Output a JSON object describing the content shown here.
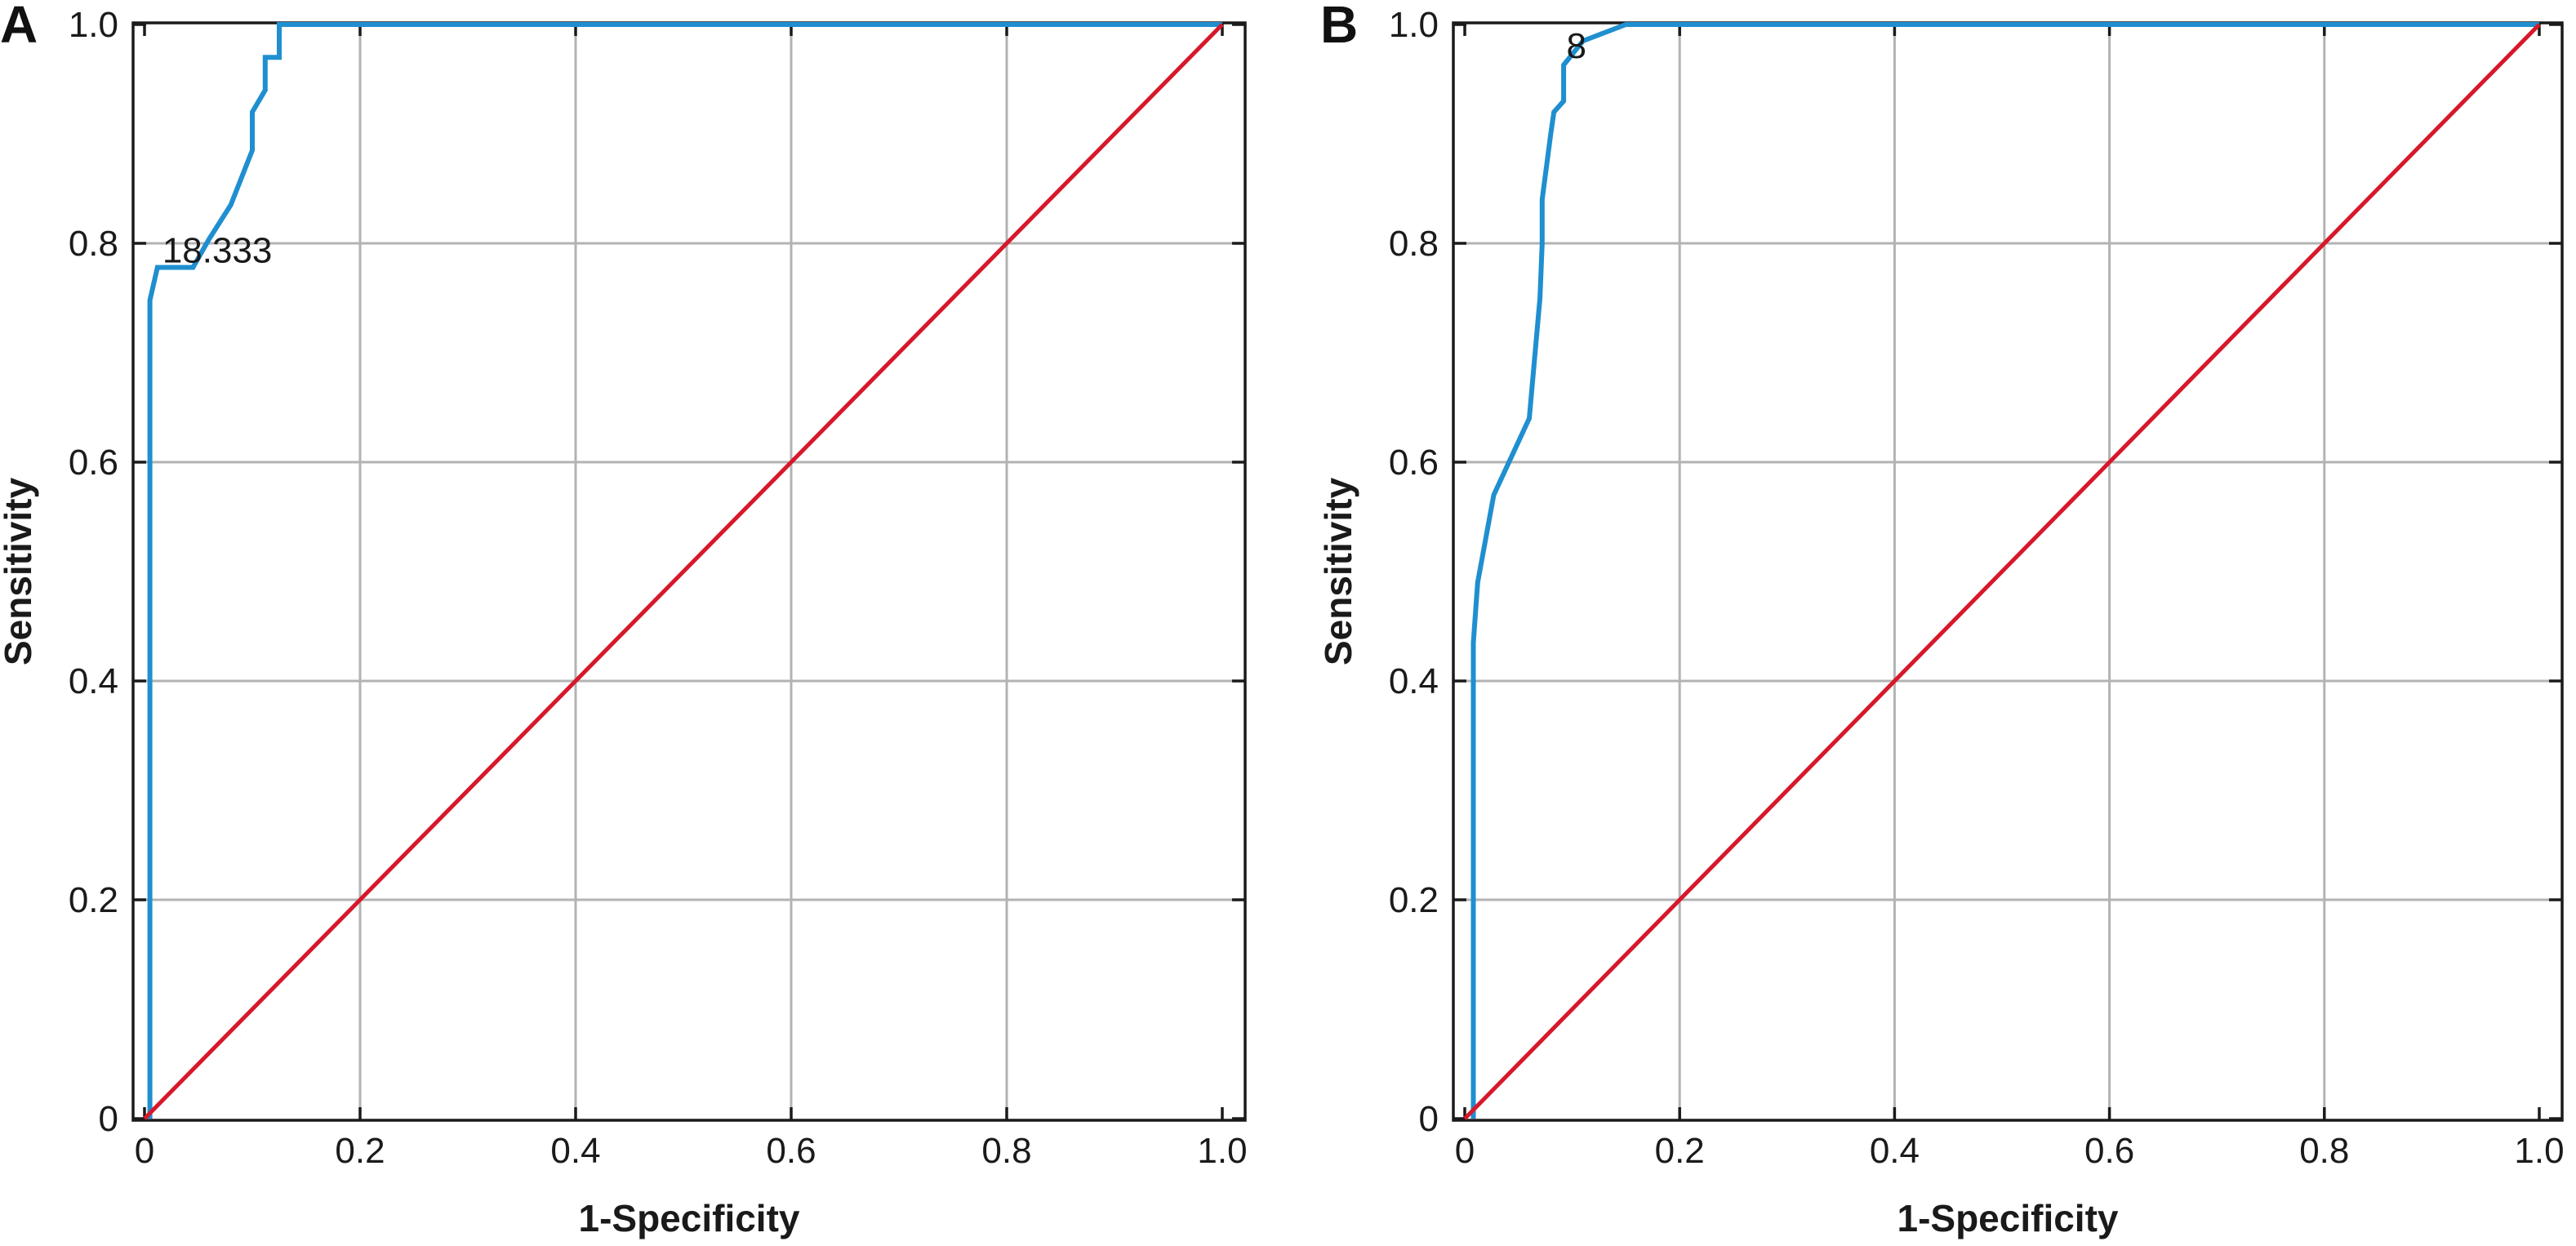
{
  "colors": {
    "roc": "#1f8fd0",
    "reference": "#d7182a",
    "grid": "#b3b3b3",
    "frame": "#1a1a1a"
  },
  "chart_data": [
    {
      "type": "line",
      "panel_label": "A",
      "xlabel": "1-Specificity",
      "ylabel": "Sensitivity",
      "xlim": [
        0,
        1.0
      ],
      "ylim": [
        0,
        1.0
      ],
      "x_ticks": [
        "0",
        "0.2",
        "0.4",
        "0.6",
        "0.8",
        "1.0"
      ],
      "y_ticks": [
        "0",
        "0.2",
        "0.4",
        "0.6",
        "0.8",
        "1.0"
      ],
      "grid": true,
      "annotation": {
        "text": "18.333",
        "x": 0.012,
        "y": 0.778
      },
      "series": [
        {
          "color": "#1f8fd0",
          "x": [
            0.005,
            0.005,
            0.012,
            0.045,
            0.06,
            0.08,
            0.1,
            0.1,
            0.112,
            0.112,
            0.125,
            0.125,
            1.0
          ],
          "y": [
            0,
            0.748,
            0.778,
            0.778,
            0.804,
            0.835,
            0.885,
            0.92,
            0.94,
            0.97,
            0.97,
            1.0,
            1.0
          ]
        },
        {
          "color": "#d7182a",
          "x": [
            0,
            1.0
          ],
          "y": [
            0,
            1.0
          ]
        }
      ]
    },
    {
      "type": "line",
      "panel_label": "B",
      "xlabel": "1-Specificity",
      "ylabel": "Sensitivity",
      "xlim": [
        0,
        1.0
      ],
      "ylim": [
        0,
        1.0
      ],
      "x_ticks": [
        "0",
        "0.2",
        "0.4",
        "0.6",
        "0.8",
        "1.0"
      ],
      "y_ticks": [
        "0",
        "0.2",
        "0.4",
        "0.6",
        "0.8",
        "1.0"
      ],
      "grid": true,
      "annotation": {
        "text": "8",
        "x": 0.09,
        "y": 0.965
      },
      "series": [
        {
          "color": "#1f8fd0",
          "x": [
            0.008,
            0.008,
            0.012,
            0.027,
            0.06,
            0.07,
            0.072,
            0.072,
            0.08,
            0.083,
            0.083,
            0.092,
            0.092,
            0.11,
            0.15,
            1.0
          ],
          "y": [
            0,
            0.435,
            0.49,
            0.57,
            0.64,
            0.75,
            0.8,
            0.84,
            0.9,
            0.92,
            0.92,
            0.93,
            0.963,
            0.985,
            1.0,
            1.0
          ]
        },
        {
          "color": "#d7182a",
          "x": [
            0,
            1.0
          ],
          "y": [
            0,
            1.0
          ]
        }
      ]
    }
  ]
}
